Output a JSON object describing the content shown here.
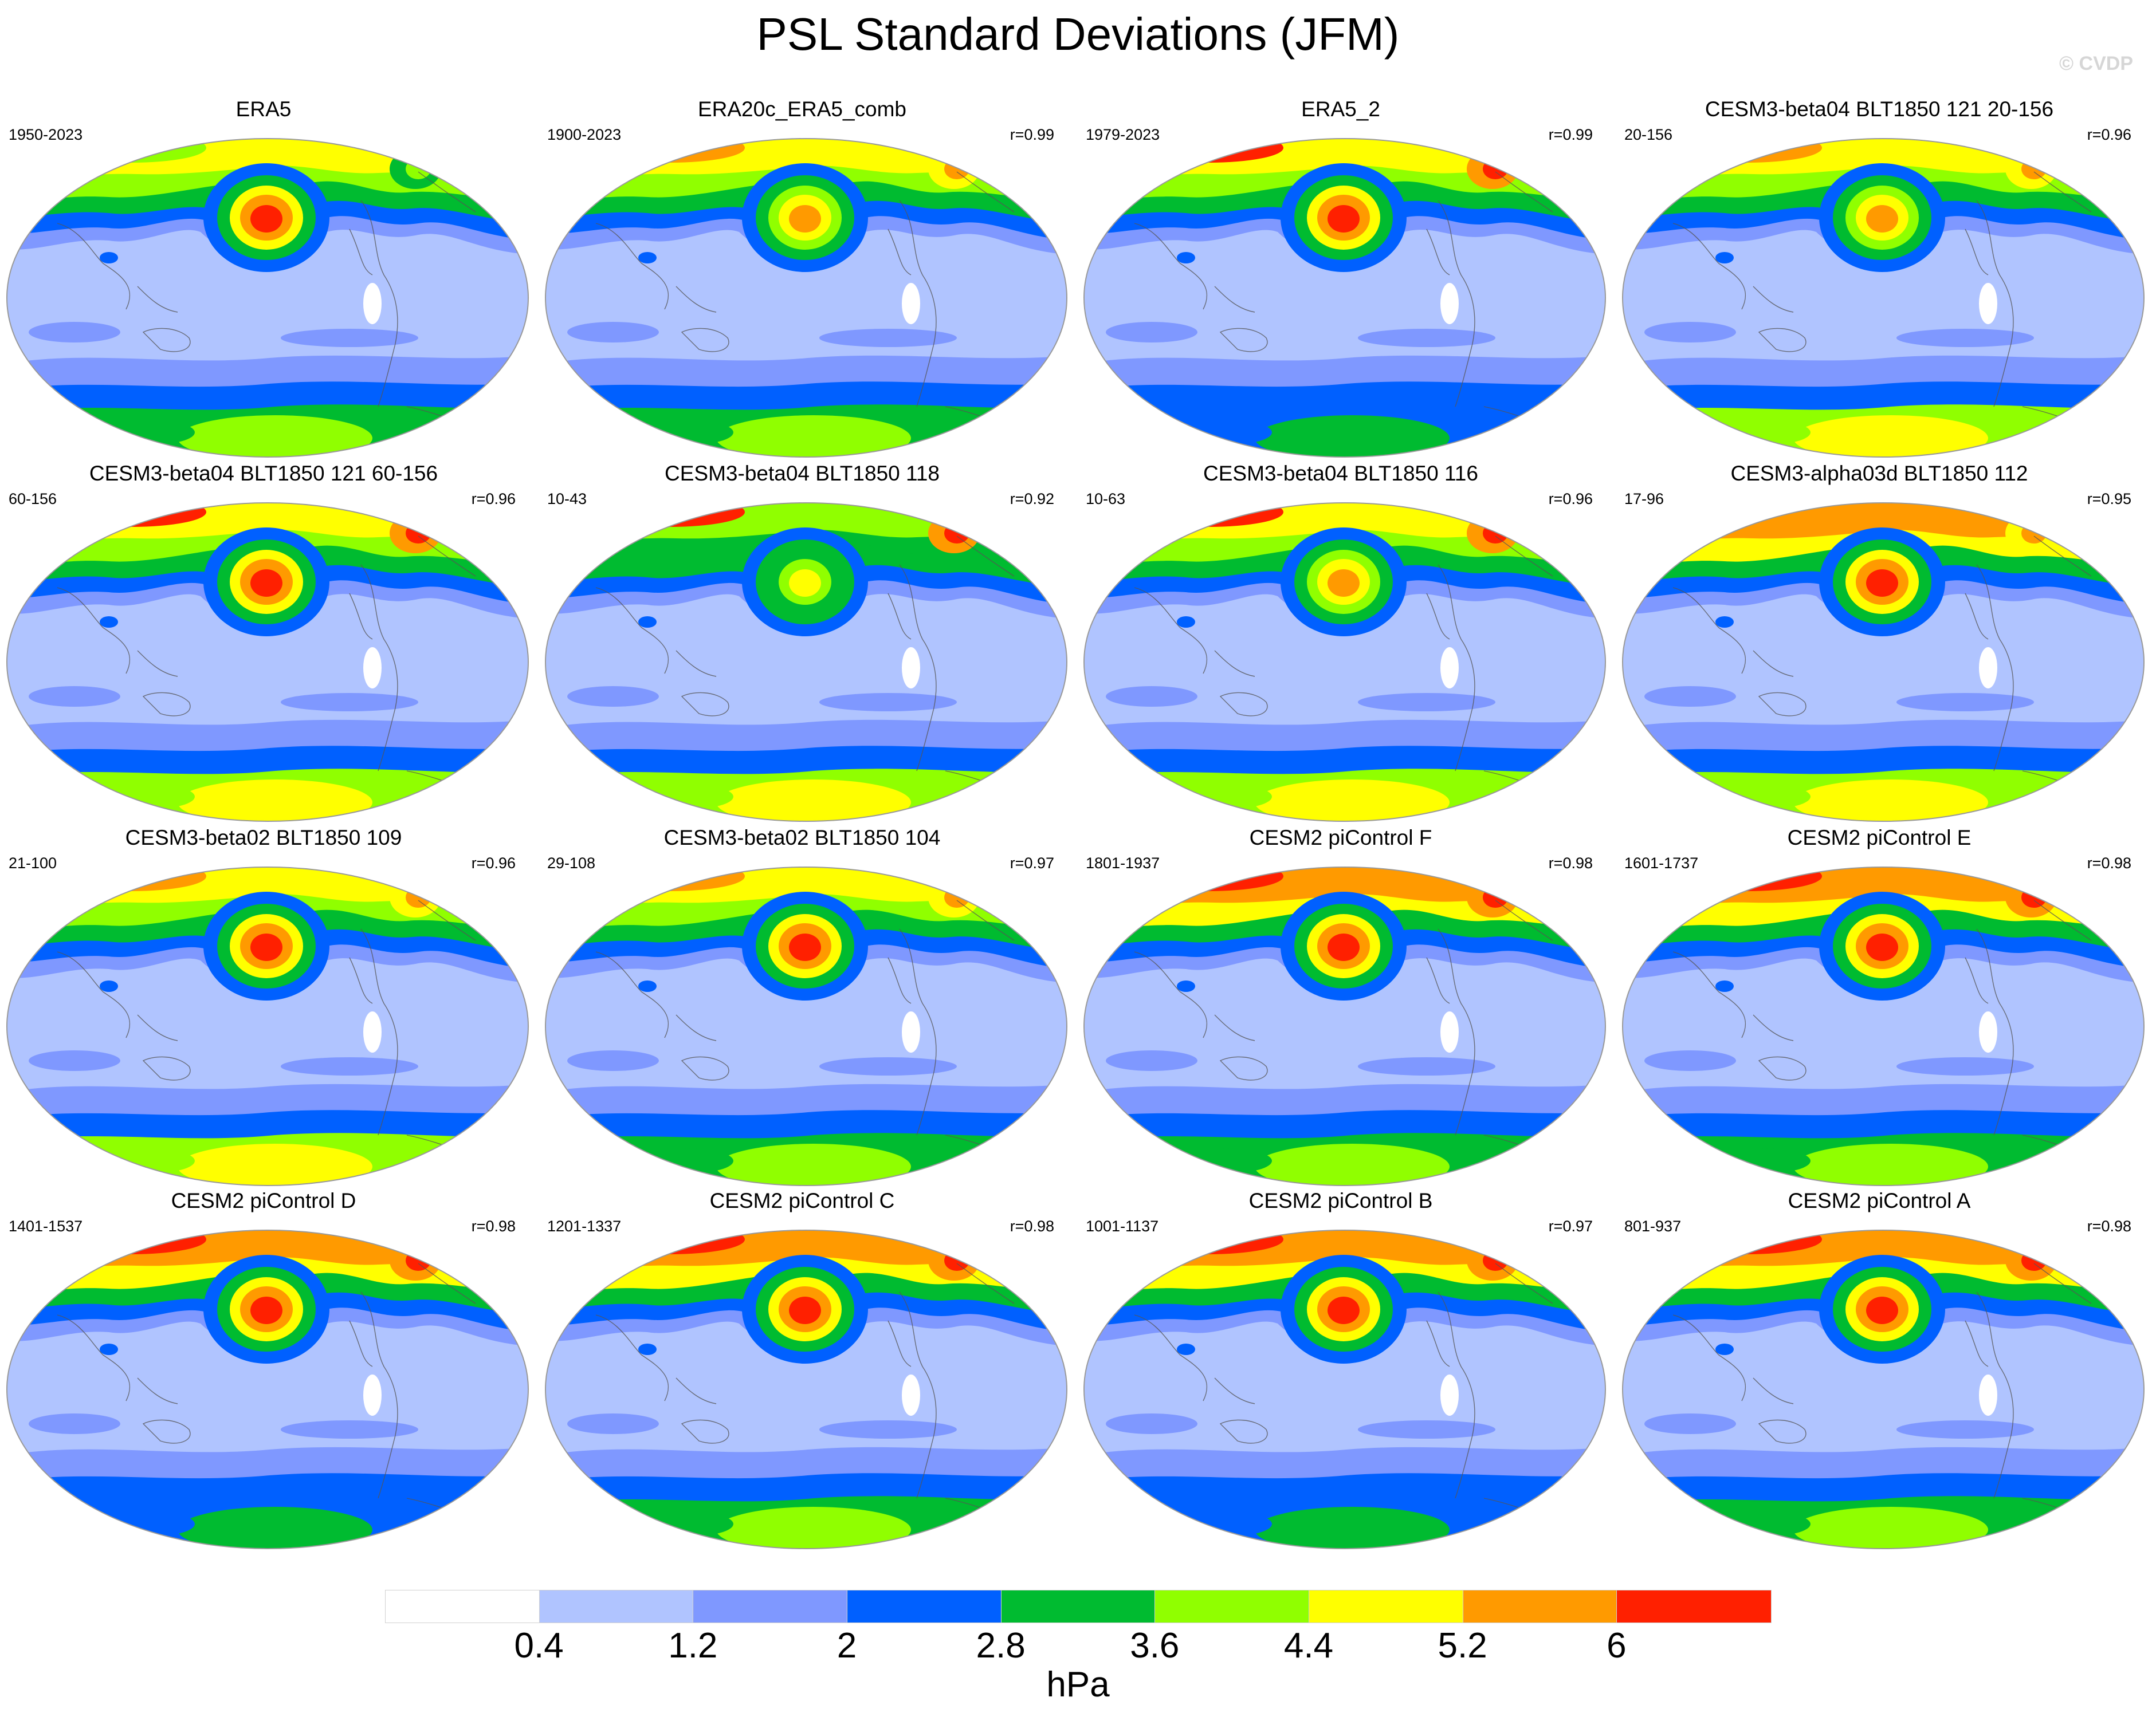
{
  "title": "PSL Standard Deviations (JFM)",
  "watermark": "© CVDP",
  "units": "hPa",
  "colorbar": {
    "ticks": [
      "0.4",
      "1.2",
      "2",
      "2.8",
      "3.6",
      "4.4",
      "5.2",
      "6"
    ],
    "colors": [
      "#ffffff",
      "#b0c4ff",
      "#7f98ff",
      "#0060ff",
      "#00bb30",
      "#90ff00",
      "#ffff00",
      "#ff9a00",
      "#ff2000"
    ]
  },
  "panels": [
    {
      "title": "ERA5",
      "years": "1950-2023",
      "corr": "",
      "ak_level": 5,
      "nh_level": 6,
      "np_level": 8,
      "sh_level": 5
    },
    {
      "title": "ERA20c_ERA5_comb",
      "years": "1900-2023",
      "corr": "r=0.99",
      "ak_level": 7,
      "nh_level": 6,
      "np_level": 7,
      "sh_level": 5
    },
    {
      "title": "ERA5_2",
      "years": "1979-2023",
      "corr": "r=0.99",
      "ak_level": 8,
      "nh_level": 6,
      "np_level": 8,
      "sh_level": 4
    },
    {
      "title": "CESM3-beta04 BLT1850 121 20-156",
      "years": "20-156",
      "corr": "r=0.96",
      "ak_level": 7,
      "nh_level": 6,
      "np_level": 7,
      "sh_level": 6
    },
    {
      "title": "CESM3-beta04 BLT1850 121 60-156",
      "years": "60-156",
      "corr": "r=0.96",
      "ak_level": 8,
      "nh_level": 6,
      "np_level": 8,
      "sh_level": 6
    },
    {
      "title": "CESM3-beta04 BLT1850 118",
      "years": "10-43",
      "corr": "r=0.92",
      "ak_level": 8,
      "nh_level": 5,
      "np_level": 6,
      "sh_level": 6
    },
    {
      "title": "CESM3-beta04 BLT1850 116",
      "years": "10-63",
      "corr": "r=0.96",
      "ak_level": 8,
      "nh_level": 6,
      "np_level": 7,
      "sh_level": 6
    },
    {
      "title": "CESM3-alpha03d BLT1850 112",
      "years": "17-96",
      "corr": "r=0.95",
      "ak_level": 7,
      "nh_level": 7,
      "np_level": 8,
      "sh_level": 6
    },
    {
      "title": "CESM3-beta02 BLT1850 109",
      "years": "21-100",
      "corr": "r=0.96",
      "ak_level": 7,
      "nh_level": 6,
      "np_level": 8,
      "sh_level": 6
    },
    {
      "title": "CESM3-beta02 BLT1850 104",
      "years": "29-108",
      "corr": "r=0.97",
      "ak_level": 7,
      "nh_level": 6,
      "np_level": 8,
      "sh_level": 5
    },
    {
      "title": "CESM2 piControl F",
      "years": "1801-1937",
      "corr": "r=0.98",
      "ak_level": 8,
      "nh_level": 7,
      "np_level": 8,
      "sh_level": 5
    },
    {
      "title": "CESM2 piControl E",
      "years": "1601-1737",
      "corr": "r=0.98",
      "ak_level": 8,
      "nh_level": 7,
      "np_level": 8,
      "sh_level": 5
    },
    {
      "title": "CESM2 piControl D",
      "years": "1401-1537",
      "corr": "r=0.98",
      "ak_level": 8,
      "nh_level": 7,
      "np_level": 8,
      "sh_level": 4
    },
    {
      "title": "CESM2 piControl C",
      "years": "1201-1337",
      "corr": "r=0.98",
      "ak_level": 8,
      "nh_level": 7,
      "np_level": 8,
      "sh_level": 5
    },
    {
      "title": "CESM2 piControl B",
      "years": "1001-1137",
      "corr": "r=0.97",
      "ak_level": 8,
      "nh_level": 7,
      "np_level": 8,
      "sh_level": 4
    },
    {
      "title": "CESM2 piControl A",
      "years": "801-937",
      "corr": "r=0.98",
      "ak_level": 8,
      "nh_level": 7,
      "np_level": 8,
      "sh_level": 5
    }
  ]
}
